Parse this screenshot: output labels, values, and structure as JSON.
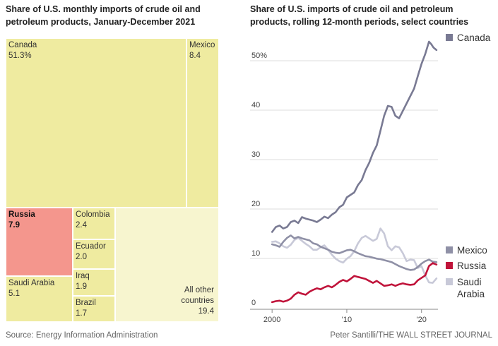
{
  "treemap": {
    "title": "Share of U.S. monthly imports of crude oil and petroleum products, January-December 2021",
    "cells": [
      {
        "name": "Canada",
        "value": "51.3%",
        "color": "#efeba0",
        "highlight": false
      },
      {
        "name": "Mexico",
        "value": "8.4",
        "color": "#efeba0",
        "highlight": false
      },
      {
        "name": "Russia",
        "value": "7.9",
        "color": "#f4968d",
        "highlight": true
      },
      {
        "name": "Colombia",
        "value": "2.4",
        "color": "#efeba0",
        "highlight": false
      },
      {
        "name": "Ecuador",
        "value": "2.0",
        "color": "#efeba0",
        "highlight": false
      },
      {
        "name": "Saudi Arabia",
        "value": "5.1",
        "color": "#efeba0",
        "highlight": false
      },
      {
        "name": "Iraq",
        "value": "1.9",
        "color": "#efeba0",
        "highlight": false
      },
      {
        "name": "Brazil",
        "value": "1.7",
        "color": "#efeba0",
        "highlight": false
      },
      {
        "name": "All other countries",
        "value": "19.4",
        "color": "#f7f5cf",
        "highlight": false
      }
    ]
  },
  "chart_data": {
    "type": "line",
    "title": "Share of U.S. imports of crude oil and petroleum products, rolling 12-month periods, select countries",
    "ylim": [
      0,
      55
    ],
    "yticks": [
      0,
      10,
      20,
      30,
      40,
      50
    ],
    "ytick_labels": [
      "0",
      "10",
      "20",
      "30",
      "40",
      "50%"
    ],
    "xlim": [
      1999.7,
      2022.2
    ],
    "xticks": [
      2000,
      2010,
      2020
    ],
    "xtick_labels": [
      "2000",
      "'10",
      "'20"
    ],
    "grid": true,
    "legend": "right",
    "series": [
      {
        "name": "Canada",
        "color": "#797a93",
        "x": [
          2000,
          2000.5,
          2001,
          2001.5,
          2002,
          2002.5,
          2003,
          2003.5,
          2004,
          2004.5,
          2005,
          2005.5,
          2006,
          2006.5,
          2007,
          2007.5,
          2008,
          2008.5,
          2009,
          2009.5,
          2010,
          2010.5,
          2011,
          2011.5,
          2012,
          2012.5,
          2013,
          2013.5,
          2014,
          2014.5,
          2015,
          2015.5,
          2016,
          2016.5,
          2017,
          2017.5,
          2018,
          2018.5,
          2019,
          2019.5,
          2020,
          2020.5,
          2021,
          2021.3,
          2021.6,
          2022
        ],
        "values": [
          14.5,
          15.5,
          15.8,
          15.2,
          15.5,
          16.5,
          16.8,
          16.3,
          17.5,
          17.2,
          17.0,
          16.8,
          16.5,
          17.0,
          17.6,
          17.3,
          18.0,
          18.5,
          19.5,
          20.0,
          21.5,
          22.0,
          22.5,
          24.0,
          25.0,
          27.0,
          28.5,
          30.5,
          32.0,
          35.0,
          38.0,
          40.0,
          39.8,
          38.0,
          37.5,
          39.0,
          40.5,
          42.0,
          43.5,
          46.0,
          48.5,
          50.5,
          53.0,
          52.5,
          51.8,
          51.3
        ]
      },
      {
        "name": "Mexico",
        "color": "#8f90a6",
        "x": [
          2000,
          2000.5,
          2001,
          2001.5,
          2002,
          2002.5,
          2003,
          2003.5,
          2004,
          2004.5,
          2005,
          2005.5,
          2006,
          2006.5,
          2007,
          2007.5,
          2008,
          2008.5,
          2009,
          2009.5,
          2010,
          2010.5,
          2011,
          2011.5,
          2012,
          2012.5,
          2013,
          2013.5,
          2014,
          2014.5,
          2015,
          2015.5,
          2016,
          2016.5,
          2017,
          2017.5,
          2018,
          2018.5,
          2019,
          2019.5,
          2020,
          2020.5,
          2021,
          2021.5,
          2022
        ],
        "values": [
          12.0,
          11.8,
          11.5,
          12.5,
          13.3,
          13.8,
          13.2,
          13.5,
          13.2,
          13.0,
          12.8,
          12.2,
          12.0,
          11.5,
          11.2,
          10.9,
          10.5,
          10.3,
          10.2,
          10.5,
          10.8,
          10.9,
          10.6,
          10.2,
          9.9,
          9.6,
          9.5,
          9.3,
          9.1,
          9.0,
          8.8,
          8.6,
          8.4,
          8.0,
          7.6,
          7.3,
          7.0,
          6.8,
          6.9,
          7.4,
          8.1,
          8.6,
          8.9,
          8.5,
          8.4
        ]
      },
      {
        "name": "Russia",
        "color": "#c0133a",
        "x": [
          2000,
          2000.5,
          2001,
          2001.5,
          2002,
          2002.5,
          2003,
          2003.5,
          2004,
          2004.5,
          2005,
          2005.5,
          2006,
          2006.5,
          2007,
          2007.5,
          2008,
          2008.5,
          2009,
          2009.5,
          2010,
          2010.5,
          2011,
          2011.5,
          2012,
          2012.5,
          2013,
          2013.5,
          2014,
          2014.5,
          2015,
          2015.5,
          2016,
          2016.5,
          2017,
          2017.5,
          2018,
          2018.5,
          2019,
          2019.5,
          2020,
          2020.5,
          2021,
          2021.5,
          2022
        ],
        "values": [
          0.3,
          0.5,
          0.6,
          0.4,
          0.6,
          1.0,
          1.8,
          2.3,
          2.0,
          1.8,
          2.4,
          2.8,
          3.1,
          2.9,
          3.3,
          3.6,
          3.3,
          3.8,
          4.4,
          4.8,
          4.5,
          5.0,
          5.6,
          5.4,
          5.2,
          5.0,
          4.6,
          4.2,
          4.6,
          4.1,
          3.6,
          3.7,
          3.9,
          3.6,
          3.9,
          4.1,
          3.9,
          3.8,
          3.9,
          4.7,
          5.2,
          5.7,
          7.6,
          8.2,
          7.9
        ]
      },
      {
        "name": "Saudi Arabia",
        "color": "#c8c9d8",
        "x": [
          2000,
          2000.5,
          2001,
          2001.5,
          2002,
          2002.5,
          2003,
          2003.5,
          2004,
          2004.5,
          2005,
          2005.5,
          2006,
          2006.5,
          2007,
          2007.5,
          2008,
          2008.5,
          2009,
          2009.5,
          2010,
          2010.5,
          2011,
          2011.5,
          2012,
          2012.5,
          2013,
          2013.5,
          2014,
          2014.5,
          2015,
          2015.5,
          2016,
          2016.5,
          2017,
          2017.5,
          2018,
          2018.5,
          2019,
          2019.5,
          2020,
          2020.5,
          2021,
          2021.5,
          2022
        ],
        "values": [
          12.5,
          12.6,
          12.2,
          11.6,
          11.3,
          11.9,
          12.9,
          13.3,
          12.7,
          12.1,
          11.6,
          10.9,
          10.9,
          11.4,
          11.8,
          10.9,
          9.9,
          9.1,
          8.6,
          8.3,
          9.1,
          9.6,
          10.6,
          12.2,
          13.3,
          13.7,
          13.2,
          12.7,
          13.1,
          15.2,
          14.2,
          11.6,
          10.8,
          11.6,
          11.4,
          10.2,
          8.6,
          8.9,
          8.8,
          7.2,
          7.6,
          5.7,
          4.3,
          4.2,
          5.1
        ]
      }
    ]
  },
  "source_left": "Source: Energy Information Administration",
  "source_right": "Peter Santilli/THE WALL STREET JOURNAL"
}
